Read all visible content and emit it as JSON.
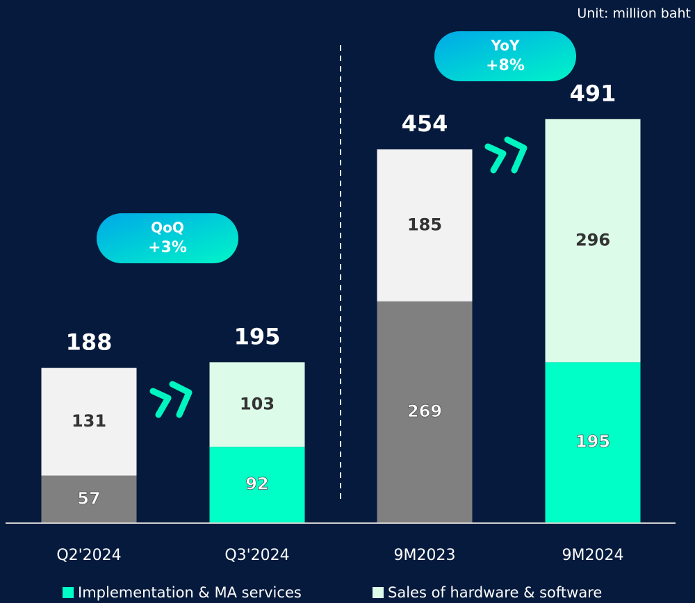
{
  "chart_data": {
    "type": "stacked_bar",
    "unit_note": "Unit: million baht",
    "categories": [
      "Q2'2024",
      "Q3'2024",
      "9M2023",
      "9M2024"
    ],
    "series": [
      {
        "name": "Implementation & MA services",
        "color": "#00ffc6",
        "colors": [
          "#808080",
          "#00ffc6",
          "#808080",
          "#00ffc6"
        ],
        "values": [
          57,
          92,
          269,
          195
        ]
      },
      {
        "name": "Sales of hardware & software",
        "color": "#dcfbe8",
        "colors": [
          "#f2f2f2",
          "#dcfbe8",
          "#f2f2f2",
          "#dcfbe8"
        ],
        "values": [
          131,
          103,
          185,
          296
        ]
      }
    ],
    "totals": [
      188,
      195,
      454,
      491
    ],
    "ylim": [
      0,
      520
    ],
    "annotations": [
      {
        "title": "QoQ",
        "change": "+3%"
      },
      {
        "title": "YoY",
        "change": "+8%"
      }
    ]
  }
}
